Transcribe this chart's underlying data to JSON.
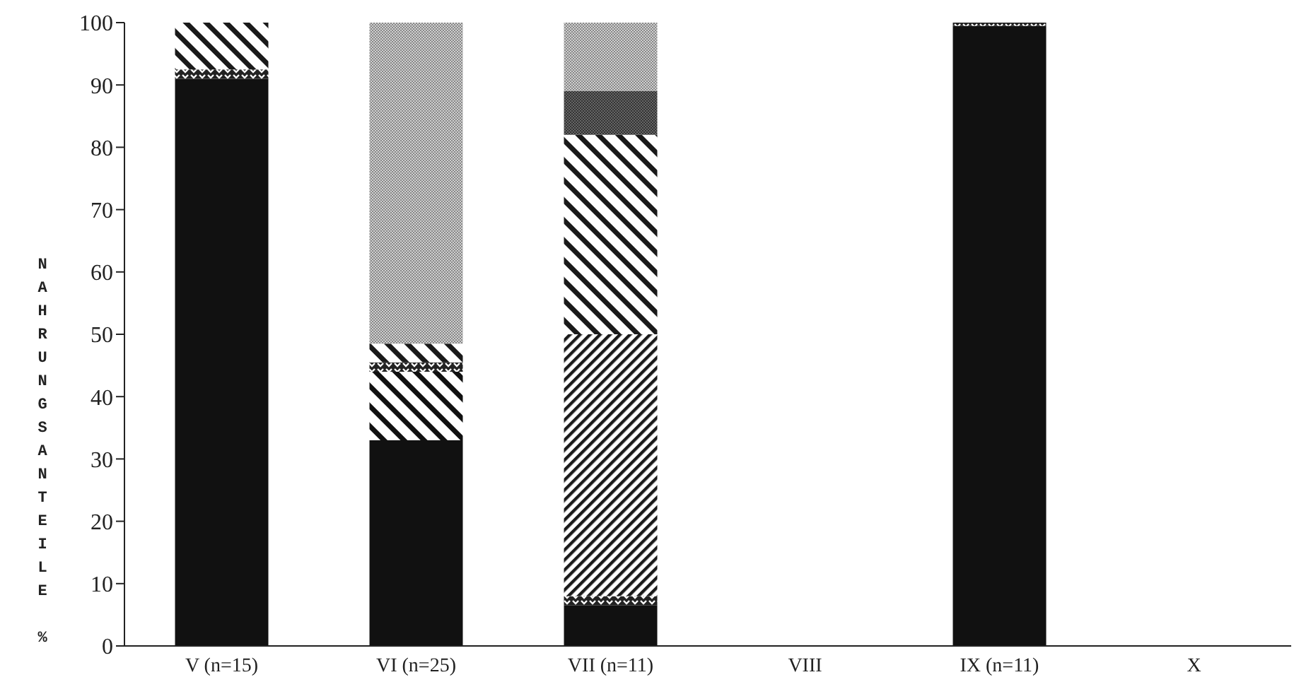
{
  "chart_data": {
    "type": "bar",
    "stacked": true,
    "ylabel": "NAHRUNGSANTEILE %",
    "categories": [
      "V (n=15)",
      "VI (n=25)",
      "VII (n=11)",
      "VIII",
      "IX (n=11)",
      "X"
    ],
    "series": [
      {
        "color": "#111111",
        "values": [
          91,
          33,
          6.5,
          null,
          99.5,
          null
        ]
      },
      {
        "color": "#111111",
        "values": [
          null,
          11,
          null,
          null,
          null,
          null
        ]
      },
      {
        "color": "#222222",
        "values": [
          1.5,
          1.5,
          1.5,
          null,
          0.5,
          null
        ]
      },
      {
        "color": "#1a1a1a",
        "values": [
          null,
          null,
          42,
          null,
          null,
          null
        ]
      },
      {
        "color": "#1a1a1a",
        "values": [
          7.5,
          3,
          32,
          null,
          null,
          null
        ]
      },
      {
        "color": "#333333",
        "values": [
          null,
          null,
          7,
          null,
          null,
          null
        ]
      },
      {
        "color": "#888888",
        "values": [
          null,
          51.5,
          11,
          null,
          null,
          null
        ]
      }
    ],
    "ylim": [
      0,
      100
    ],
    "yticks": [
      0,
      10,
      20,
      30,
      40,
      50,
      60,
      70,
      80,
      90,
      100
    ],
    "grid": false,
    "legend": false
  }
}
